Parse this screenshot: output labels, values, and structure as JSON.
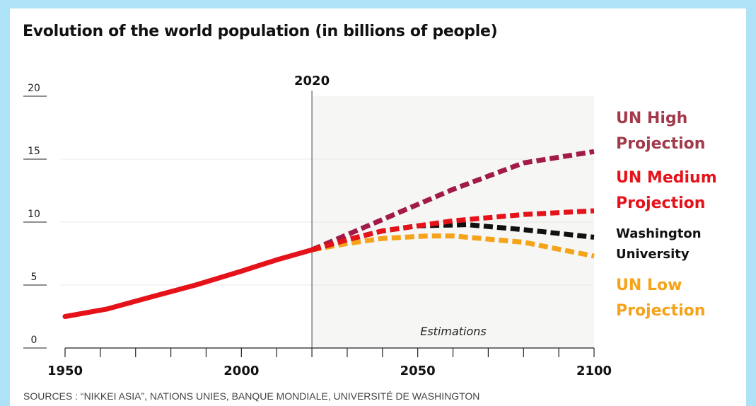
{
  "title": "Evolution of the world population (in billions of people)",
  "sources": "SOURCES : “NIKKEI ASIA”, NATIONS UNIES, BANQUE MONDIALE, UNIVERSITÉ DE WASHINGTON",
  "marker_label": "2020",
  "shaded_label": "Estimations",
  "colors": {
    "background": "#aee2f7",
    "historical": "#e5121a",
    "un_high": "#a21a48",
    "un_medium": "#e5121a",
    "washington": "#111111",
    "un_low": "#f4a31a",
    "estimation_bg": "#f6f6f4"
  },
  "legend": [
    {
      "line1": "UN High",
      "line2": "Projection",
      "color": "#a23a4c"
    },
    {
      "line1": "UN Medium",
      "line2": "Projection",
      "color": "#e5121a"
    },
    {
      "line1": "Washington",
      "line2": "University",
      "color": "#111111"
    },
    {
      "line1": "UN Low",
      "line2": "Projection",
      "color": "#f4a31a"
    }
  ],
  "chart_data": {
    "type": "line",
    "title": "Evolution of the world population (in billions of people)",
    "xlim": [
      1950,
      2100
    ],
    "ylim": [
      0,
      20
    ],
    "x_ticks": [
      1950,
      2000,
      2050,
      2100
    ],
    "y_ticks": [
      0,
      5,
      10,
      15,
      20
    ],
    "grid": true,
    "marker_year": 2020,
    "series": [
      {
        "style": "solid",
        "x": [
          1950,
          1962,
          1975,
          1987,
          2000,
          2010,
          2020
        ],
        "y": [
          2.5,
          3.1,
          4.1,
          5.0,
          6.1,
          7.0,
          7.8
        ]
      },
      {
        "name": "UN High Projection",
        "style": "dashed",
        "x": [
          2020,
          2040,
          2060,
          2080,
          2100
        ],
        "y": [
          7.8,
          10.2,
          12.6,
          14.7,
          15.6
        ]
      },
      {
        "name": "UN Medium Projection",
        "style": "dashed",
        "x": [
          2020,
          2030,
          2040,
          2050,
          2060,
          2080,
          2100
        ],
        "y": [
          7.8,
          8.6,
          9.3,
          9.7,
          10.1,
          10.6,
          10.9
        ]
      },
      {
        "name": "Washington University",
        "style": "dashed",
        "x": [
          2020,
          2030,
          2040,
          2050,
          2064,
          2080,
          2100
        ],
        "y": [
          7.8,
          8.6,
          9.3,
          9.7,
          9.8,
          9.4,
          8.8
        ]
      },
      {
        "name": "UN Low Projection",
        "style": "dashed",
        "x": [
          2020,
          2030,
          2040,
          2053,
          2060,
          2080,
          2100
        ],
        "y": [
          7.8,
          8.3,
          8.7,
          8.9,
          8.9,
          8.4,
          7.3
        ]
      }
    ]
  }
}
